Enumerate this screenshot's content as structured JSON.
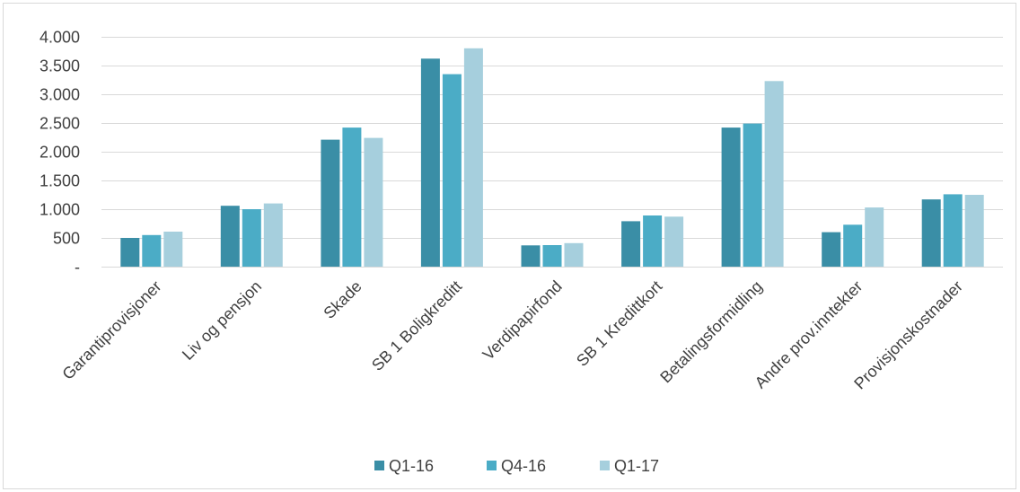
{
  "chart_data": {
    "type": "bar",
    "title": "",
    "xlabel": "",
    "ylabel": "",
    "ylim": [
      0,
      4000
    ],
    "yticks": [
      0,
      500,
      1000,
      1500,
      2000,
      2500,
      3000,
      3500,
      4000
    ],
    "ytick_labels": [
      "-",
      "500",
      "1.000",
      "1.500",
      "2.000",
      "2.500",
      "3.000",
      "3.500",
      "4.000"
    ],
    "grid": "horizontal",
    "legend_position": "bottom",
    "categories": [
      "Garantiprovisjoner",
      "Liv og pensjon",
      "Skade",
      "SB 1 Boligkreditt",
      "Verdipapirfond",
      "SB 1 Kredittkort",
      "Betalingsformidling",
      "Andre prov.inntekter",
      "Provisjonskostnader"
    ],
    "series": [
      {
        "name": "Q1-16",
        "color": "#3a8ea6",
        "values": [
          500,
          1060,
          2210,
          3620,
          370,
          790,
          2420,
          600,
          1170
        ]
      },
      {
        "name": "Q4-16",
        "color": "#4bacc6",
        "values": [
          550,
          1000,
          2420,
          3350,
          375,
          890,
          2490,
          730,
          1260
        ]
      },
      {
        "name": "Q1-17",
        "color": "#a6cfdd",
        "values": [
          610,
          1100,
          2240,
          3800,
          410,
          870,
          3230,
          1030,
          1250
        ]
      }
    ]
  }
}
